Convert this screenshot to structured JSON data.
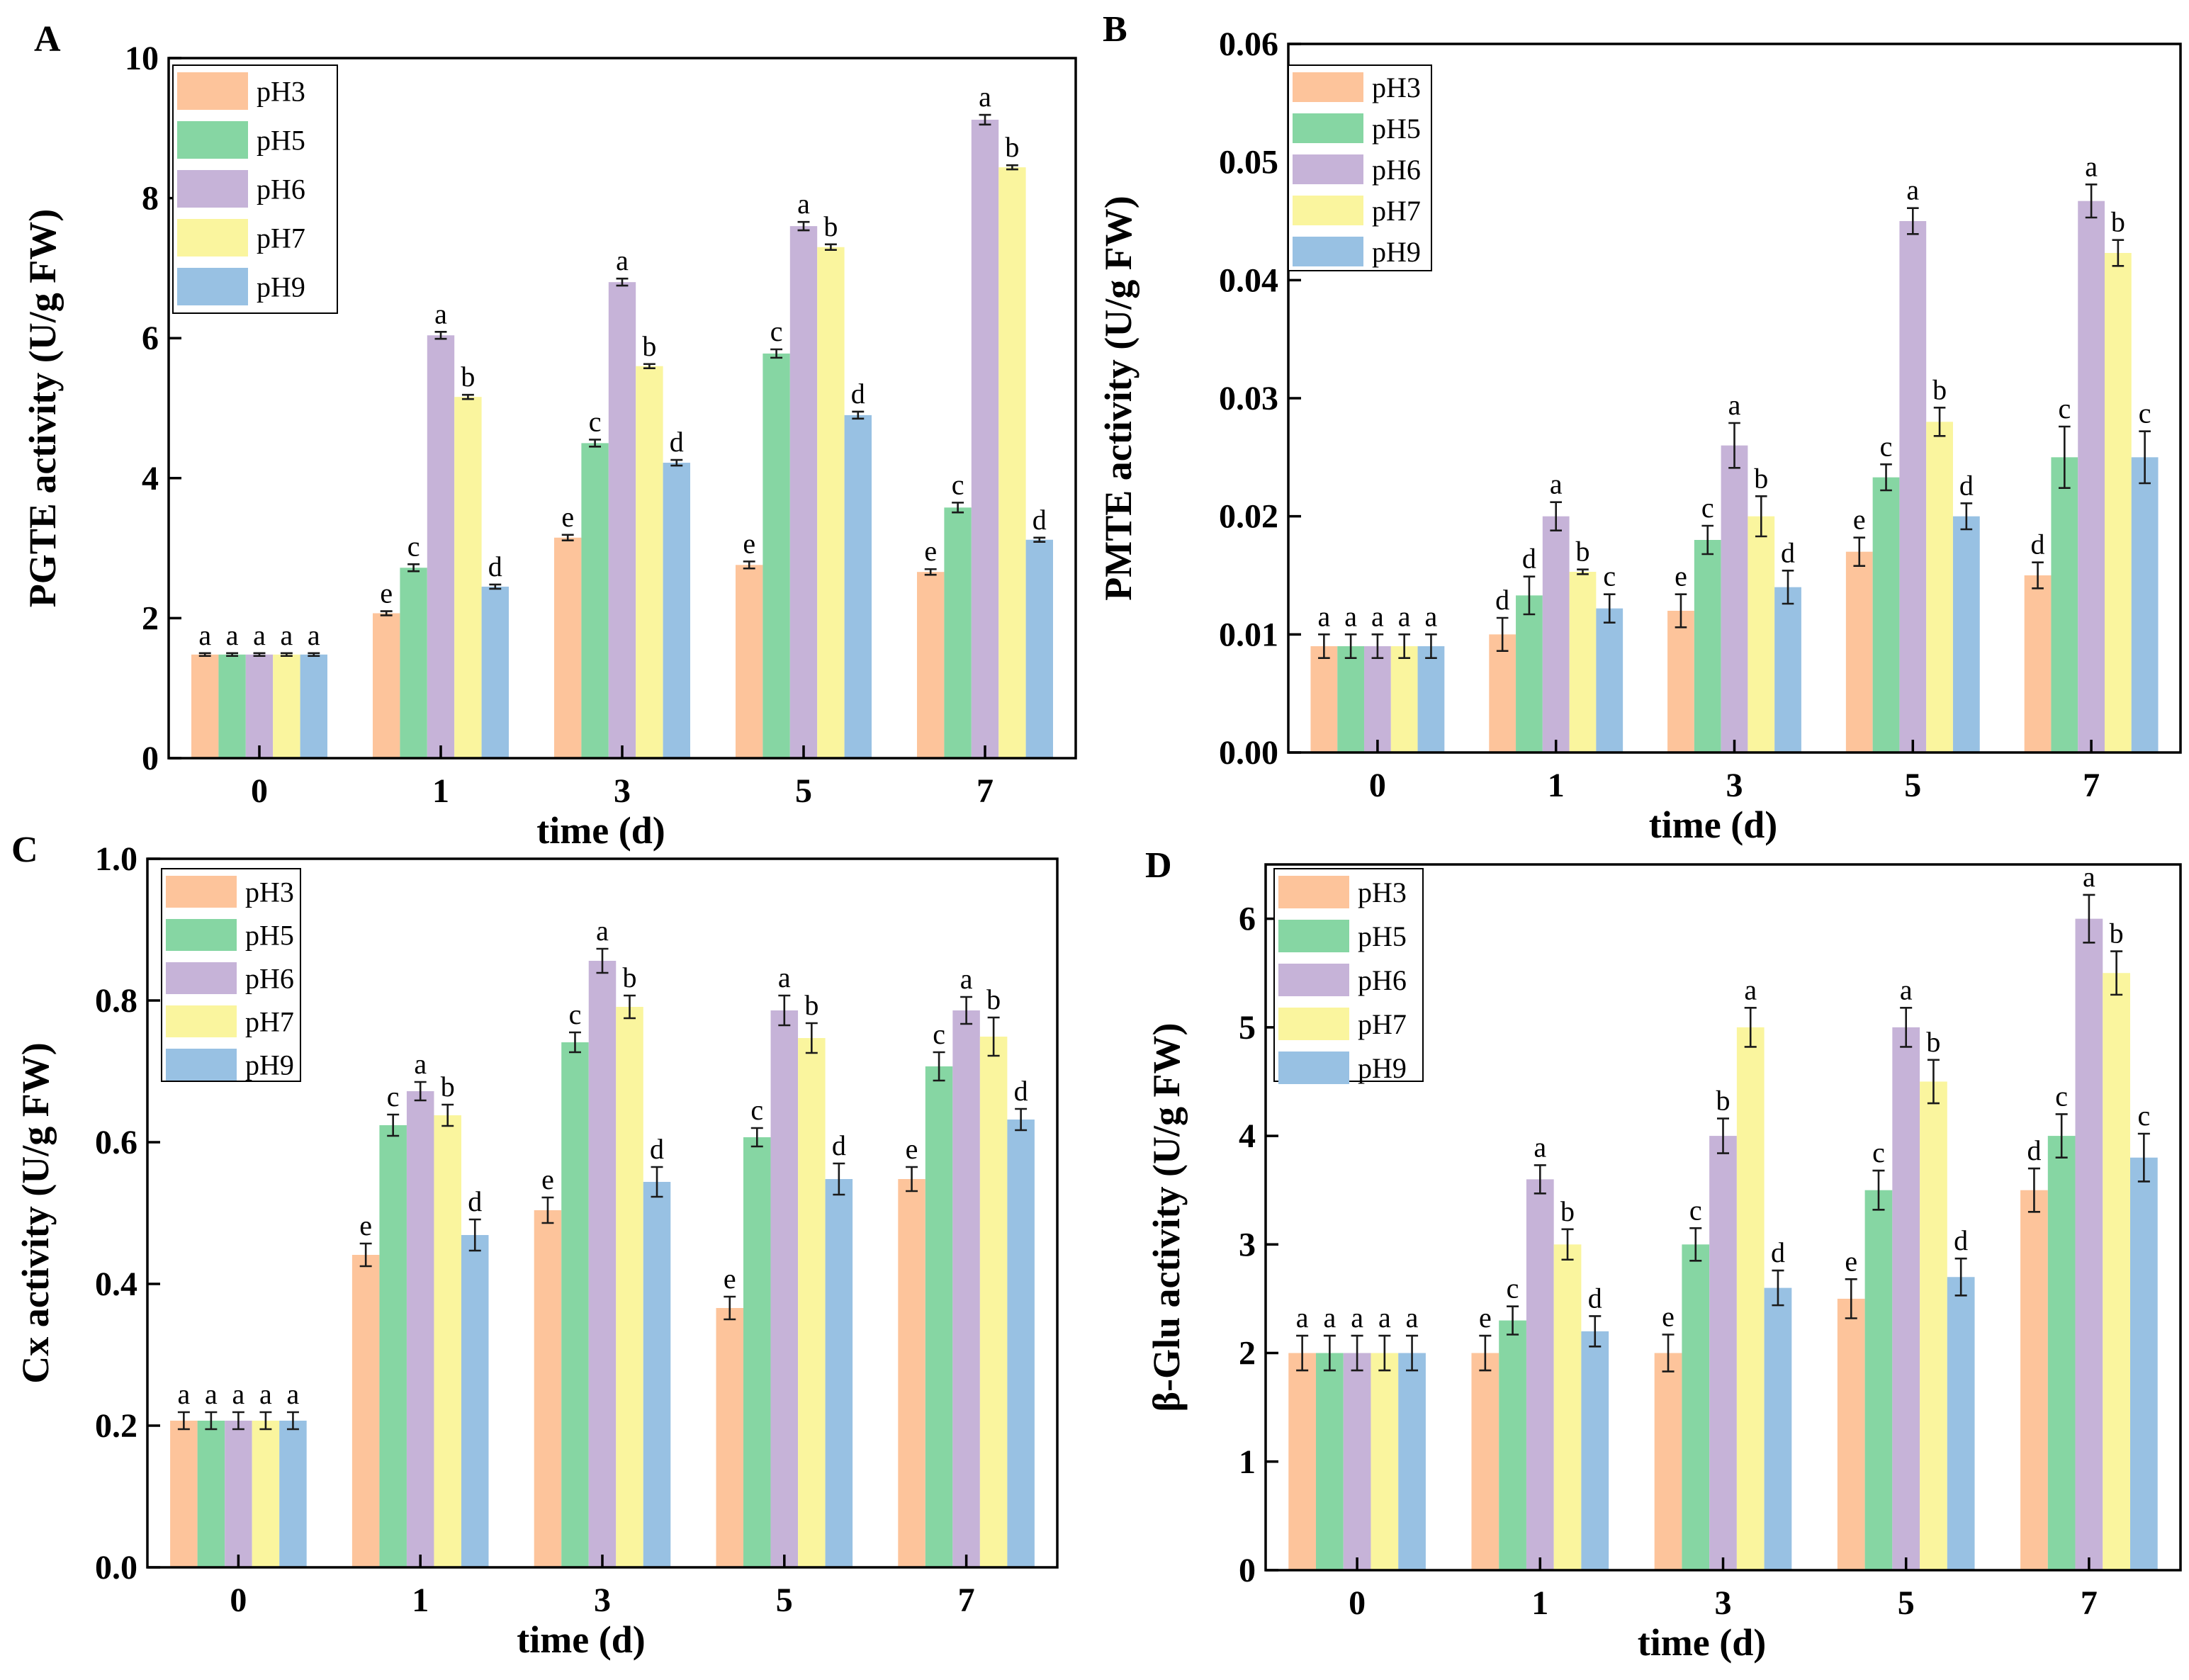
{
  "series_names": [
    "pH3",
    "pH5",
    "pH6",
    "pH7",
    "pH9"
  ],
  "series_colors": [
    "#FDC49B",
    "#86D6A3",
    "#C6B3D8",
    "#FAF59E",
    "#98C1E3"
  ],
  "chart_data": [
    {
      "panel": "A",
      "type": "bar",
      "ylabel": "PGTE activity (U/g FW)",
      "xlabel": "time (d)",
      "categories": [
        "0",
        "1",
        "3",
        "5",
        "7"
      ],
      "ylim": [
        0,
        10
      ],
      "yticks": [
        "0",
        "2",
        "4",
        "6",
        "8",
        "10"
      ],
      "legend_position": "top-left",
      "series": [
        {
          "name": "pH3",
          "values": [
            1.48,
            2.07,
            3.15,
            2.76,
            2.66
          ],
          "errors": [
            0.02,
            0.03,
            0.04,
            0.05,
            0.04
          ],
          "labels": [
            "a",
            "e",
            "e",
            "e",
            "e"
          ]
        },
        {
          "name": "pH5",
          "values": [
            1.48,
            2.72,
            4.5,
            5.78,
            3.58
          ],
          "errors": [
            0.02,
            0.05,
            0.05,
            0.06,
            0.07
          ],
          "labels": [
            "a",
            "c",
            "c",
            "c",
            "c"
          ]
        },
        {
          "name": "pH6",
          "values": [
            1.48,
            6.04,
            6.8,
            7.6,
            9.12
          ],
          "errors": [
            0.02,
            0.05,
            0.05,
            0.06,
            0.07
          ],
          "labels": [
            "a",
            "a",
            "a",
            "a",
            "a"
          ]
        },
        {
          "name": "pH7",
          "values": [
            1.48,
            5.16,
            5.6,
            7.3,
            8.44
          ],
          "errors": [
            0.02,
            0.03,
            0.03,
            0.04,
            0.03
          ],
          "labels": [
            "a",
            "b",
            "b",
            "b",
            "b"
          ]
        },
        {
          "name": "pH9",
          "values": [
            1.48,
            2.45,
            4.22,
            4.9,
            3.12
          ],
          "errors": [
            0.02,
            0.03,
            0.04,
            0.05,
            0.03
          ],
          "labels": [
            "a",
            "d",
            "d",
            "d",
            "d"
          ]
        }
      ]
    },
    {
      "panel": "B",
      "type": "bar",
      "ylabel": "PMTE activity (U/g FW)",
      "xlabel": "time (d)",
      "categories": [
        "0",
        "1",
        "3",
        "5",
        "7"
      ],
      "ylim": [
        0,
        0.06
      ],
      "yticks": [
        "0.00",
        "0.01",
        "0.02",
        "0.03",
        "0.04",
        "0.05",
        "0.06"
      ],
      "legend_position": "top-left",
      "series": [
        {
          "name": "pH3",
          "values": [
            0.009,
            0.01,
            0.012,
            0.017,
            0.015
          ],
          "errors": [
            0.001,
            0.0014,
            0.0014,
            0.0012,
            0.0011
          ],
          "labels": [
            "a",
            "d",
            "e",
            "e",
            "d"
          ]
        },
        {
          "name": "pH5",
          "values": [
            0.009,
            0.0133,
            0.018,
            0.0233,
            0.025
          ],
          "errors": [
            0.001,
            0.0016,
            0.0012,
            0.0011,
            0.0026
          ],
          "labels": [
            "a",
            "d",
            "c",
            "c",
            "c"
          ]
        },
        {
          "name": "pH6",
          "values": [
            0.009,
            0.02,
            0.026,
            0.045,
            0.0467
          ],
          "errors": [
            0.001,
            0.0012,
            0.0019,
            0.0011,
            0.0014
          ],
          "labels": [
            "a",
            "a",
            "a",
            "a",
            "a"
          ]
        },
        {
          "name": "pH7",
          "values": [
            0.009,
            0.0153,
            0.02,
            0.028,
            0.0423
          ],
          "errors": [
            0.001,
            0.0002,
            0.0017,
            0.0012,
            0.0011
          ],
          "labels": [
            "a",
            "b",
            "b",
            "b",
            "b"
          ]
        },
        {
          "name": "pH9",
          "values": [
            0.009,
            0.0122,
            0.014,
            0.02,
            0.025
          ],
          "errors": [
            0.001,
            0.0012,
            0.0014,
            0.0011,
            0.0022
          ],
          "labels": [
            "a",
            "c",
            "d",
            "d",
            "c"
          ]
        }
      ]
    },
    {
      "panel": "C",
      "type": "bar",
      "ylabel": "Cx activity (U/g FW)",
      "xlabel": "time (d)",
      "categories": [
        "0",
        "1",
        "3",
        "5",
        "7"
      ],
      "ylim": [
        0,
        1.0
      ],
      "yticks": [
        "0.0",
        "0.2",
        "0.4",
        "0.6",
        "0.8",
        "1.0"
      ],
      "legend_position": "top-left",
      "series": [
        {
          "name": "pH3",
          "values": [
            0.207,
            0.441,
            0.504,
            0.366,
            0.548
          ],
          "errors": [
            0.012,
            0.016,
            0.018,
            0.016,
            0.017
          ],
          "labels": [
            "a",
            "e",
            "e",
            "e",
            "e"
          ]
        },
        {
          "name": "pH5",
          "values": [
            0.207,
            0.624,
            0.741,
            0.607,
            0.707
          ],
          "errors": [
            0.012,
            0.015,
            0.014,
            0.013,
            0.02
          ],
          "labels": [
            "a",
            "c",
            "c",
            "c",
            "c"
          ]
        },
        {
          "name": "pH6",
          "values": [
            0.207,
            0.672,
            0.856,
            0.786,
            0.786
          ],
          "errors": [
            0.012,
            0.013,
            0.017,
            0.021,
            0.019
          ],
          "labels": [
            "a",
            "a",
            "a",
            "a",
            "a"
          ]
        },
        {
          "name": "pH7",
          "values": [
            0.207,
            0.638,
            0.791,
            0.747,
            0.749
          ],
          "errors": [
            0.012,
            0.015,
            0.016,
            0.021,
            0.027
          ],
          "labels": [
            "a",
            "b",
            "b",
            "b",
            "b"
          ]
        },
        {
          "name": "pH9",
          "values": [
            0.207,
            0.469,
            0.544,
            0.548,
            0.632
          ],
          "errors": [
            0.012,
            0.022,
            0.021,
            0.022,
            0.015
          ],
          "labels": [
            "a",
            "d",
            "d",
            "d",
            "d"
          ]
        }
      ]
    },
    {
      "panel": "D",
      "type": "bar",
      "ylabel": "β-Glu activity (U/g FW)",
      "xlabel": "time (d)",
      "categories": [
        "0",
        "1",
        "3",
        "5",
        "7"
      ],
      "ylim": [
        0,
        6.5
      ],
      "yticks": [
        "0",
        "1",
        "2",
        "3",
        "4",
        "5",
        "6"
      ],
      "legend_position": "top-left",
      "series": [
        {
          "name": "pH3",
          "values": [
            2.0,
            2.0,
            2.0,
            2.5,
            3.5
          ],
          "errors": [
            0.16,
            0.16,
            0.17,
            0.18,
            0.2
          ],
          "labels": [
            "a",
            "e",
            "e",
            "e",
            "d"
          ]
        },
        {
          "name": "pH5",
          "values": [
            2.0,
            2.3,
            3.0,
            3.5,
            4.0
          ],
          "errors": [
            0.16,
            0.13,
            0.15,
            0.18,
            0.2
          ],
          "labels": [
            "a",
            "c",
            "c",
            "c",
            "c"
          ]
        },
        {
          "name": "pH6",
          "values": [
            2.0,
            3.6,
            4.0,
            5.0,
            6.0
          ],
          "errors": [
            0.16,
            0.13,
            0.16,
            0.18,
            0.22
          ],
          "labels": [
            "a",
            "a",
            "b",
            "a",
            "a"
          ]
        },
        {
          "name": "pH7",
          "values": [
            2.0,
            3.0,
            5.0,
            4.5,
            5.5
          ],
          "errors": [
            0.16,
            0.14,
            0.18,
            0.2,
            0.2
          ],
          "labels": [
            "a",
            "b",
            "a",
            "b",
            "b"
          ]
        },
        {
          "name": "pH9",
          "values": [
            2.0,
            2.2,
            2.6,
            2.7,
            3.8
          ],
          "errors": [
            0.16,
            0.14,
            0.16,
            0.17,
            0.22
          ],
          "labels": [
            "a",
            "d",
            "d",
            "d",
            "c"
          ]
        }
      ]
    }
  ]
}
